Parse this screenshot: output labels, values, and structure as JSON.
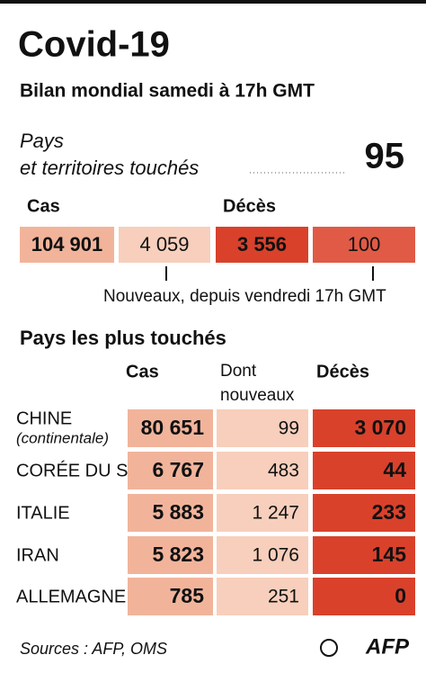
{
  "header": {
    "title": "Covid-19",
    "subtitle": "Bilan mondial samedi à 17h GMT"
  },
  "countries": {
    "label": [
      "Pays",
      "et territoires touchés"
    ],
    "value": "95"
  },
  "summary": {
    "cases_label": "Cas",
    "deaths_label": "Décès",
    "values": [
      "104 901",
      "4 059",
      "3 556",
      "100"
    ],
    "note": "Nouveaux, depuis vendredi 17h GMT"
  },
  "table": {
    "title": "Pays les plus touchés",
    "columns": [
      "Cas",
      [
        "Dont",
        "nouveaux"
      ],
      "Décès"
    ],
    "rows": [
      {
        "country": "CHINE",
        "note": "(continentale)",
        "values": [
          "80 651",
          "99",
          "3 070"
        ]
      },
      {
        "country": "CORÉE DU S.",
        "values": [
          "6 767",
          "483",
          "44"
        ]
      },
      {
        "country": "ITALIE",
        "values": [
          "5 883",
          "1 247",
          "233"
        ]
      },
      {
        "country": "IRAN",
        "values": [
          "5 823",
          "1 076",
          "145"
        ]
      },
      {
        "country": "ALLEMAGNE",
        "values": [
          "785",
          "251",
          "0"
        ]
      }
    ]
  },
  "footer": {
    "sources": "Sources : AFP, OMS",
    "logo": "AFP"
  }
}
